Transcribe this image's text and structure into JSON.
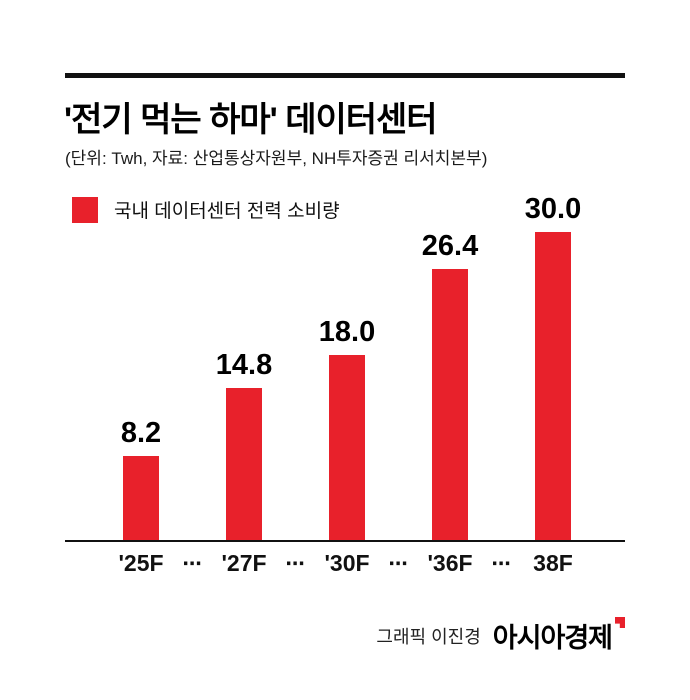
{
  "header": {
    "title": "'전기 먹는 하마' 데이터센터",
    "subtitle": "(단위: Twh, 자료: 산업통상자원부, NH투자증권 리서치본부)"
  },
  "legend": {
    "label": "국내 데이터센터 전력 소비량",
    "swatch_color": "#e8212b"
  },
  "chart_data": {
    "type": "bar",
    "title": "국내 데이터센터 전력 소비량",
    "unit": "Twh",
    "categories": [
      "'25F",
      "'27F",
      "'30F",
      "'36F",
      "38F"
    ],
    "values": [
      8.2,
      14.8,
      18.0,
      26.4,
      30.0
    ],
    "value_labels": [
      "8.2",
      "14.8",
      "18.0",
      "26.4",
      "30.0"
    ],
    "x_separator": "⋯",
    "bar_color": "#e8212b",
    "ylim": [
      0,
      32
    ],
    "grid": false,
    "legend_position": "top-left",
    "value_labels_shown": true,
    "y_axis_shown": false
  },
  "footer": {
    "credit": "그래픽 이진경",
    "brand": "아시아경제",
    "brand_mark_color": "#e8212b"
  }
}
